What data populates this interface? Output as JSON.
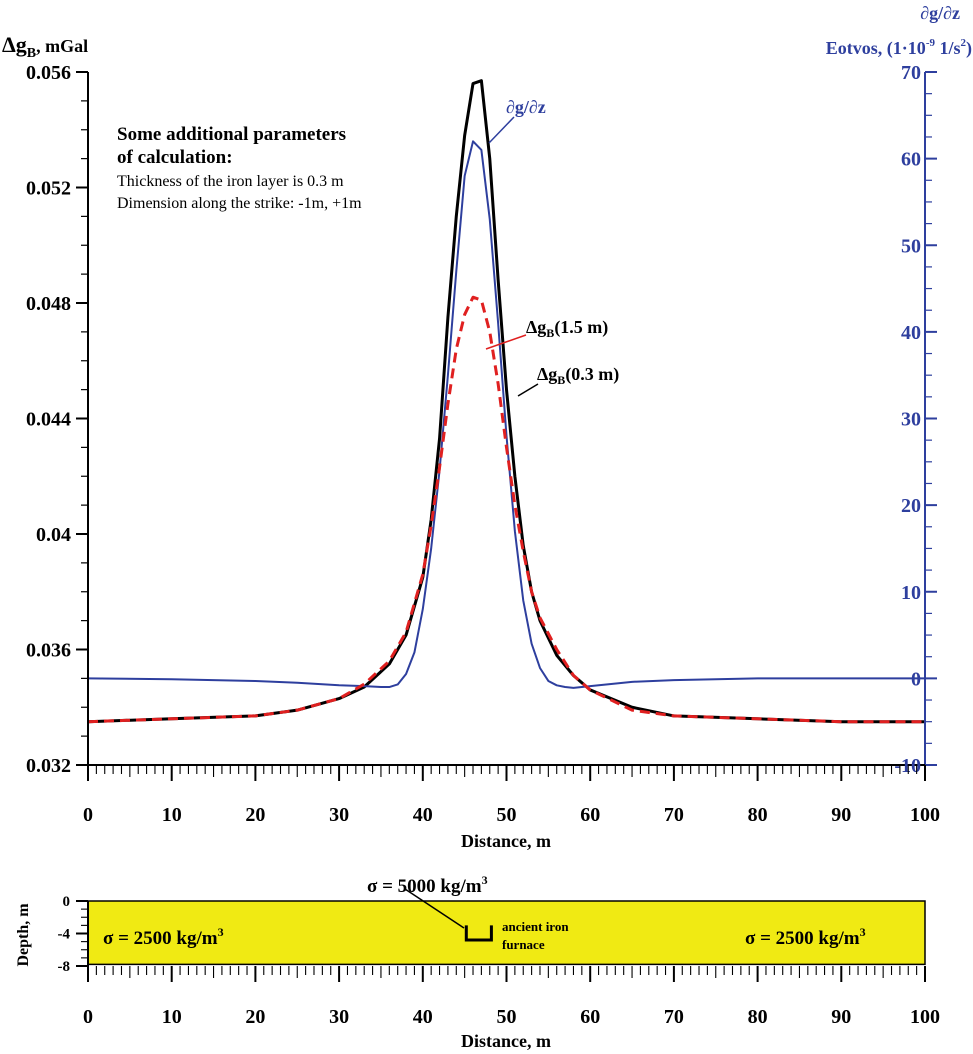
{
  "chart_data": [
    {
      "type": "line",
      "left_axis": {
        "label": "Δg",
        "label_sub": "B",
        "label_unit": ", mGal",
        "ylim": [
          0.032,
          0.056
        ],
        "ticks": [
          0.032,
          0.036,
          0.04,
          0.044,
          0.048,
          0.052,
          0.056
        ],
        "tick_labels": [
          "0.032",
          "0.036",
          "0.04",
          "0.044",
          "0.048",
          "0.052",
          "0.056"
        ]
      },
      "right_axis": {
        "label_line1": "∂g/∂z",
        "label_line2_prefix": "Eotvos, (1·10",
        "label_line2_sup": "-9",
        "label_line2_mid": " 1/s",
        "label_line2_sup2": "2",
        "label_line2_suffix": ")",
        "ylim": [
          -10,
          70
        ],
        "ticks": [
          -10,
          0,
          10,
          20,
          30,
          40,
          50,
          60,
          70
        ],
        "tick_labels": [
          "-10",
          "0",
          "10",
          "20",
          "30",
          "40",
          "50",
          "60",
          "70"
        ],
        "color": "#2e3f9e"
      },
      "x_axis": {
        "label": "Distance, m",
        "xlim": [
          0,
          100
        ],
        "ticks": [
          0,
          10,
          20,
          30,
          40,
          50,
          60,
          70,
          80,
          90,
          100
        ],
        "tick_labels": [
          "0",
          "10",
          "20",
          "30",
          "40",
          "50",
          "60",
          "70",
          "80",
          "90",
          "100"
        ]
      },
      "annotation": {
        "title_line1": "Some additional parameters",
        "title_line2": "of calculation:",
        "line1": "Thickness of the iron layer is 0.3 m",
        "line2": "Dimension along the strike: -1m, +1m"
      },
      "series": [
        {
          "name": "Δg",
          "name_sub": "B",
          "name_suffix": "(0.3 m)",
          "axis": "left",
          "color": "#000000",
          "style": "solid",
          "x": [
            0,
            10,
            20,
            25,
            30,
            33,
            36,
            38,
            40,
            41,
            42,
            43,
            44,
            45,
            46,
            47,
            48,
            49,
            50,
            51,
            52,
            53,
            54,
            56,
            58,
            60,
            65,
            70,
            80,
            90,
            100
          ],
          "y": [
            0.0335,
            0.0336,
            0.0337,
            0.0339,
            0.0343,
            0.0347,
            0.0355,
            0.0365,
            0.0385,
            0.0405,
            0.0433,
            0.0475,
            0.051,
            0.0538,
            0.0556,
            0.0557,
            0.053,
            0.0488,
            0.045,
            0.042,
            0.0396,
            0.038,
            0.037,
            0.0358,
            0.0351,
            0.0346,
            0.034,
            0.0337,
            0.0336,
            0.0335,
            0.0335
          ]
        },
        {
          "name": "Δg",
          "name_sub": "B",
          "name_suffix": "(1.5 m)",
          "axis": "left",
          "color": "#e02020",
          "style": "dashed",
          "x": [
            0,
            10,
            20,
            25,
            30,
            33,
            36,
            38,
            40,
            41,
            42,
            43,
            44,
            45,
            46,
            47,
            48,
            49,
            50,
            51,
            52,
            53,
            54,
            56,
            58,
            60,
            65,
            70,
            80,
            90,
            100
          ],
          "y": [
            0.0335,
            0.0336,
            0.0337,
            0.0339,
            0.0343,
            0.0348,
            0.0356,
            0.0366,
            0.0386,
            0.0403,
            0.0423,
            0.0445,
            0.0464,
            0.0476,
            0.0482,
            0.0481,
            0.047,
            0.0452,
            0.043,
            0.041,
            0.0394,
            0.038,
            0.0371,
            0.036,
            0.0351,
            0.0346,
            0.0339,
            0.0337,
            0.0336,
            0.0335,
            0.0335
          ]
        },
        {
          "name": "∂g/∂z",
          "axis": "right",
          "color": "#2e3f9e",
          "style": "solid",
          "x": [
            0,
            10,
            20,
            25,
            30,
            33,
            35,
            36,
            37,
            38,
            39,
            40,
            41,
            42,
            43,
            44,
            45,
            46,
            47,
            48,
            49,
            50,
            51,
            52,
            53,
            54,
            55,
            56,
            57,
            58,
            59,
            60,
            65,
            70,
            80,
            90,
            100
          ],
          "y": [
            0,
            -0.1,
            -0.3,
            -0.5,
            -0.8,
            -0.9,
            -1.0,
            -1.0,
            -0.7,
            0.5,
            3,
            8,
            15,
            24,
            35,
            47,
            58,
            62,
            61,
            53,
            41,
            28,
            17,
            9,
            4,
            1.2,
            -0.3,
            -0.8,
            -1.0,
            -1.1,
            -1.0,
            -0.9,
            -0.4,
            -0.2,
            0,
            0,
            0
          ]
        }
      ]
    },
    {
      "type": "cross-section",
      "y_axis": {
        "label": "Depth, m",
        "ylim": [
          -8,
          0
        ],
        "ticks": [
          0,
          -4,
          -8
        ],
        "tick_labels": [
          "0",
          "-4",
          "-8"
        ]
      },
      "x_axis": {
        "label": "Distance, m",
        "xlim": [
          0,
          100
        ],
        "ticks": [
          0,
          10,
          20,
          30,
          40,
          50,
          60,
          70,
          80,
          90,
          100
        ],
        "tick_labels": [
          "0",
          "10",
          "20",
          "30",
          "40",
          "50",
          "60",
          "70",
          "80",
          "90",
          "100"
        ]
      },
      "layer": {
        "color": "#f0ea13",
        "depth_top": 0,
        "depth_bottom": -7.8
      },
      "labels": {
        "left_density_prefix": "σ = 2500 kg/m",
        "left_density_sup": "3",
        "right_density_prefix": "σ = 2500 kg/m",
        "right_density_sup": "3",
        "furnace_density_prefix": "σ = 5000 kg/m",
        "furnace_density_sup": "3",
        "furnace_line1": "ancient iron",
        "furnace_line2": "furnace"
      },
      "furnace": {
        "x_left": 45.2,
        "x_right": 48.2,
        "depth_top": -3.0,
        "depth_bottom": -4.8
      }
    }
  ]
}
